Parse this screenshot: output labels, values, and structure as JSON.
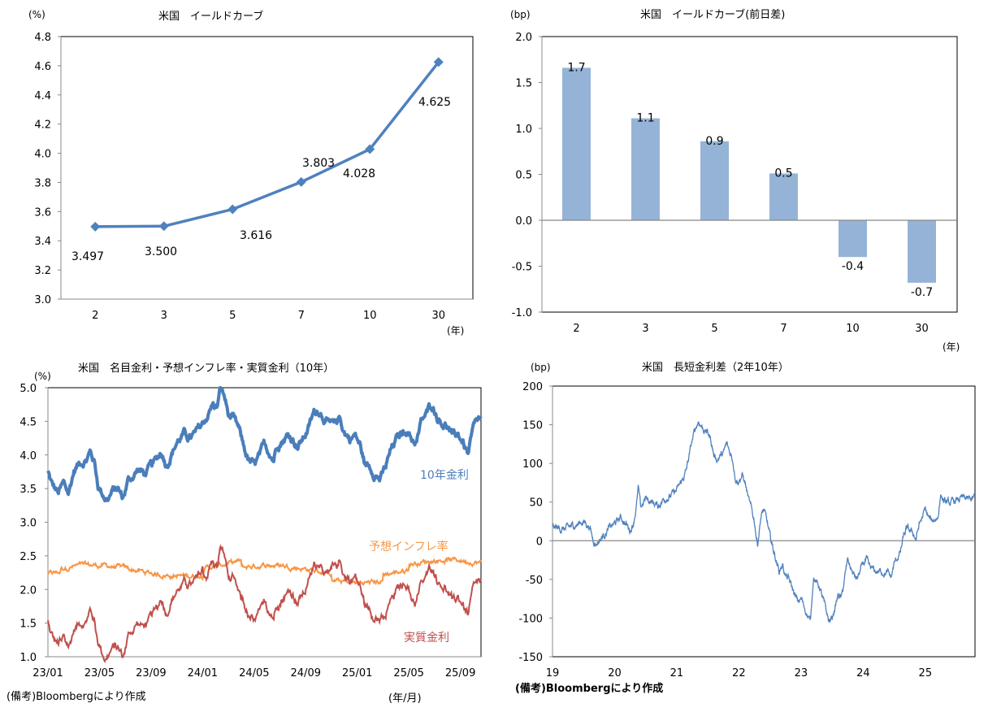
{
  "chart_data": [
    {
      "id": "yield_curve",
      "type": "line",
      "title": "米国　イールドカーブ",
      "ylabel": "(%)",
      "xlabel": "(年)",
      "categories": [
        "2",
        "3",
        "5",
        "7",
        "10",
        "30"
      ],
      "values": [
        3.497,
        3.5,
        3.616,
        3.803,
        4.028,
        4.625
      ],
      "data_labels": [
        "3.497",
        "3.500",
        "3.616",
        "3.803",
        "4.028",
        "4.625"
      ],
      "ylim": [
        3.0,
        4.8
      ],
      "yticks": [
        3.0,
        3.2,
        3.4,
        3.6,
        3.8,
        4.0,
        4.2,
        4.4,
        4.6,
        4.8
      ],
      "ytick_labels": [
        "3.0",
        "3.2",
        "3.4",
        "3.6",
        "3.8",
        "4.0",
        "4.2",
        "4.4",
        "4.6",
        "4.8"
      ],
      "marker": "diamond",
      "color": "#4f81bd",
      "grid": false
    },
    {
      "id": "yield_curve_change",
      "type": "bar",
      "title": "米国　イールドカーブ(前日差)",
      "ylabel": "(bp)",
      "xlabel": "(年)",
      "categories": [
        "2",
        "3",
        "5",
        "7",
        "10",
        "30"
      ],
      "values": [
        1.66,
        1.11,
        0.86,
        0.51,
        -0.4,
        -0.68
      ],
      "data_labels": [
        "1.7",
        "1.1",
        "0.9",
        "0.5",
        "-0.4",
        "-0.7"
      ],
      "ylim": [
        -1.0,
        2.0
      ],
      "yticks": [
        -1.0,
        -0.5,
        0.0,
        0.5,
        1.0,
        1.5,
        2.0
      ],
      "ytick_labels": [
        "-1.0",
        "-0.5",
        "0.0",
        "0.5",
        "1.0",
        "1.5",
        "2.0"
      ],
      "color": "#95b3d7",
      "grid": false
    },
    {
      "id": "nominal_bei_real",
      "type": "line",
      "title": "米国　名目金利・予想インフレ率・実質金利（10年）",
      "ylabel": "(%)",
      "xlabel": "(年/月)",
      "note": "(備考)Bloombergにより作成",
      "x_start": "23/01",
      "x_end": "25/10",
      "xtick_labels": [
        "23/01",
        "23/05",
        "23/09",
        "24/01",
        "24/05",
        "24/09",
        "25/01",
        "25/05",
        "25/09"
      ],
      "ylim": [
        1.0,
        5.0
      ],
      "yticks": [
        1.0,
        1.5,
        2.0,
        2.5,
        3.0,
        3.5,
        4.0,
        4.5,
        5.0
      ],
      "ytick_labels": [
        "1.0",
        "1.5",
        "2.0",
        "2.5",
        "3.0",
        "3.5",
        "4.0",
        "4.5",
        "5.0"
      ],
      "x_months_span": 33.6,
      "series": [
        {
          "name": "10年金利",
          "color": "#4a7ebb",
          "points_month_value": [
            [
              0,
              3.75
            ],
            [
              0.3,
              3.55
            ],
            [
              0.8,
              3.42
            ],
            [
              1.2,
              3.55
            ],
            [
              1.6,
              3.42
            ],
            [
              2.0,
              3.75
            ],
            [
              2.5,
              3.9
            ],
            [
              3.0,
              3.95
            ],
            [
              3.3,
              4.05
            ],
            [
              3.6,
              3.9
            ],
            [
              3.9,
              3.55
            ],
            [
              4.2,
              3.45
            ],
            [
              4.6,
              3.35
            ],
            [
              5.0,
              3.45
            ],
            [
              5.4,
              3.5
            ],
            [
              5.8,
              3.35
            ],
            [
              6.2,
              3.6
            ],
            [
              6.6,
              3.7
            ],
            [
              7.0,
              3.78
            ],
            [
              7.5,
              3.72
            ],
            [
              8.0,
              3.8
            ],
            [
              8.4,
              3.9
            ],
            [
              8.8,
              4.05
            ],
            [
              9.2,
              3.88
            ],
            [
              9.6,
              4.05
            ],
            [
              10.0,
              4.2
            ],
            [
              10.5,
              4.3
            ],
            [
              11.0,
              4.25
            ],
            [
              11.5,
              4.3
            ],
            [
              12.0,
              4.45
            ],
            [
              12.4,
              4.6
            ],
            [
              12.8,
              4.75
            ],
            [
              13.1,
              4.7
            ],
            [
              13.4,
              4.98
            ],
            [
              13.7,
              4.85
            ],
            [
              14.0,
              4.6
            ],
            [
              14.4,
              4.5
            ],
            [
              14.8,
              4.35
            ],
            [
              15.2,
              4.1
            ],
            [
              15.6,
              3.9
            ],
            [
              16.0,
              3.82
            ],
            [
              16.4,
              3.95
            ],
            [
              16.8,
              4.1
            ],
            [
              17.2,
              4.05
            ],
            [
              17.5,
              3.95
            ],
            [
              17.8,
              4.2
            ],
            [
              18.2,
              4.25
            ],
            [
              18.6,
              4.3
            ],
            [
              19.0,
              4.25
            ],
            [
              19.4,
              4.15
            ],
            [
              19.8,
              4.25
            ],
            [
              20.2,
              4.4
            ],
            [
              20.6,
              4.6
            ],
            [
              21.0,
              4.68
            ],
            [
              21.4,
              4.6
            ],
            [
              21.8,
              4.45
            ],
            [
              22.2,
              4.4
            ],
            [
              22.6,
              4.55
            ],
            [
              23.0,
              4.35
            ],
            [
              23.4,
              4.25
            ],
            [
              23.8,
              4.3
            ],
            [
              24.2,
              4.15
            ],
            [
              24.6,
              3.85
            ],
            [
              25.0,
              3.82
            ],
            [
              25.4,
              3.75
            ],
            [
              25.8,
              3.65
            ],
            [
              26.2,
              3.8
            ],
            [
              26.6,
              4.05
            ],
            [
              27.0,
              4.2
            ],
            [
              27.4,
              4.3
            ],
            [
              27.8,
              4.4
            ],
            [
              28.2,
              4.25
            ],
            [
              28.6,
              4.2
            ],
            [
              29.0,
              4.5
            ],
            [
              29.4,
              4.6
            ],
            [
              29.8,
              4.75
            ],
            [
              30.2,
              4.6
            ],
            [
              30.6,
              4.5
            ],
            [
              31.0,
              4.45
            ],
            [
              31.4,
              4.25
            ],
            [
              31.8,
              4.3
            ],
            [
              32.2,
              4.2
            ],
            [
              32.6,
              4.0
            ],
            [
              33.0,
              4.35
            ],
            [
              33.4,
              4.5
            ]
          ]
        },
        {
          "name": "予想インフレ率",
          "color": "#f79646",
          "points_month_value": []
        },
        {
          "name": "実質金利",
          "color": "#c0504d",
          "points_month_value": []
        }
      ]
    },
    {
      "id": "spread_2s10s",
      "type": "line",
      "title": "米国　長短金利差（2年10年）",
      "ylabel": "(bp)",
      "note": "(備考)Bloombergにより作成",
      "x_start_year": 2019,
      "x_end_year": 2025.8,
      "xtick_labels": [
        "19",
        "20",
        "21",
        "22",
        "23",
        "24",
        "25"
      ],
      "ylim": [
        -150,
        200
      ],
      "yticks": [
        -150,
        -100,
        -50,
        0,
        50,
        100,
        150,
        200
      ],
      "ytick_labels": [
        "-150",
        "-100",
        "-50",
        "0",
        "50",
        "100",
        "150",
        "200"
      ],
      "color": "#4f81bd",
      "points_year_value": [
        [
          2019.0,
          17
        ],
        [
          2019.2,
          15
        ],
        [
          2019.35,
          20
        ],
        [
          2019.5,
          25
        ],
        [
          2019.6,
          18
        ],
        [
          2019.65,
          2
        ],
        [
          2019.7,
          -4
        ],
        [
          2019.8,
          5
        ],
        [
          2019.9,
          15
        ],
        [
          2020.0,
          22
        ],
        [
          2020.1,
          30
        ],
        [
          2020.2,
          20
        ],
        [
          2020.25,
          14
        ],
        [
          2020.3,
          22
        ],
        [
          2020.35,
          45
        ],
        [
          2020.38,
          68
        ],
        [
          2020.42,
          42
        ],
        [
          2020.5,
          55
        ],
        [
          2020.6,
          50
        ],
        [
          2020.7,
          45
        ],
        [
          2020.8,
          55
        ],
        [
          2020.9,
          58
        ],
        [
          2021.0,
          65
        ],
        [
          2021.1,
          80
        ],
        [
          2021.15,
          90
        ],
        [
          2021.2,
          110
        ],
        [
          2021.25,
          130
        ],
        [
          2021.3,
          145
        ],
        [
          2021.35,
          155
        ],
        [
          2021.4,
          148
        ],
        [
          2021.45,
          142
        ],
        [
          2021.5,
          140
        ],
        [
          2021.55,
          130
        ],
        [
          2021.6,
          110
        ],
        [
          2021.65,
          105
        ],
        [
          2021.7,
          110
        ],
        [
          2021.75,
          112
        ],
        [
          2021.8,
          125
        ],
        [
          2021.85,
          115
        ],
        [
          2021.9,
          105
        ],
        [
          2021.95,
          80
        ],
        [
          2022.0,
          78
        ],
        [
          2022.05,
          85
        ],
        [
          2022.1,
          75
        ],
        [
          2022.15,
          55
        ],
        [
          2022.2,
          40
        ],
        [
          2022.25,
          25
        ],
        [
          2022.3,
          -5
        ],
        [
          2022.35,
          30
        ],
        [
          2022.4,
          40
        ],
        [
          2022.45,
          25
        ],
        [
          2022.5,
          5
        ],
        [
          2022.55,
          -10
        ],
        [
          2022.6,
          -25
        ],
        [
          2022.65,
          -40
        ],
        [
          2022.7,
          -30
        ],
        [
          2022.75,
          -45
        ],
        [
          2022.8,
          -50
        ],
        [
          2022.9,
          -70
        ],
        [
          2022.95,
          -80
        ],
        [
          2023.0,
          -75
        ],
        [
          2023.05,
          -85
        ],
        [
          2023.1,
          -95
        ],
        [
          2023.15,
          -105
        ],
        [
          2023.2,
          -45
        ],
        [
          2023.25,
          -55
        ],
        [
          2023.3,
          -60
        ],
        [
          2023.35,
          -75
        ],
        [
          2023.4,
          -90
        ],
        [
          2023.45,
          -105
        ],
        [
          2023.5,
          -100
        ],
        [
          2023.55,
          -85
        ],
        [
          2023.6,
          -70
        ],
        [
          2023.65,
          -75
        ],
        [
          2023.7,
          -50
        ],
        [
          2023.75,
          -25
        ],
        [
          2023.8,
          -35
        ],
        [
          2023.85,
          -45
        ],
        [
          2023.9,
          -50
        ],
        [
          2024.0,
          -30
        ],
        [
          2024.05,
          -25
        ],
        [
          2024.1,
          -35
        ],
        [
          2024.2,
          -40
        ],
        [
          2024.3,
          -40
        ],
        [
          2024.4,
          -42
        ],
        [
          2024.45,
          -48
        ],
        [
          2024.5,
          -30
        ],
        [
          2024.6,
          -15
        ],
        [
          2024.65,
          5
        ],
        [
          2024.7,
          15
        ],
        [
          2024.8,
          10
        ],
        [
          2024.85,
          2
        ],
        [
          2024.9,
          20
        ],
        [
          2025.0,
          40
        ],
        [
          2025.05,
          30
        ],
        [
          2025.1,
          25
        ],
        [
          2025.2,
          30
        ],
        [
          2025.25,
          60
        ],
        [
          2025.3,
          50
        ],
        [
          2025.4,
          48
        ],
        [
          2025.5,
          52
        ],
        [
          2025.6,
          55
        ],
        [
          2025.7,
          53
        ],
        [
          2025.8,
          56
        ]
      ]
    }
  ],
  "labels": {
    "chart1_title": "米国　イールドカーブ",
    "chart1_unit": "(%)",
    "chart1_xunit": "(年)",
    "chart2_title": "米国　イールドカーブ(前日差)",
    "chart2_unit": "(bp)",
    "chart2_xunit": "(年)",
    "chart3_title": "米国　名目金利・予想インフレ率・実質金利（10年）",
    "chart3_unit": "(%)",
    "chart3_xunit": "(年/月)",
    "chart3_legend_nominal": "10年金利",
    "chart3_legend_bei": "予想インフレ率",
    "chart3_legend_real": "実質金利",
    "chart3_note": "(備考)Bloombergにより作成",
    "chart4_title": "米国　長短金利差（2年10年）",
    "chart4_unit": "(bp)",
    "chart4_note": "(備考)Bloombergにより作成"
  }
}
